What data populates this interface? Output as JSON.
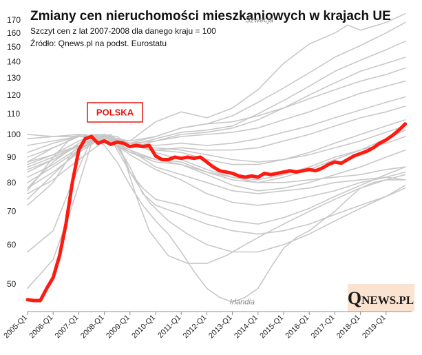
{
  "chart_data": {
    "type": "line",
    "title": "Zmiany cen nieruchomości mieszkaniowych w krajach UE",
    "subtitle": "Szczyt cen z lat 2007-2008  dla danego kraju = 100",
    "source": "Źródło: Qnews.pl na podst. Eurostatu",
    "xlabel": "",
    "ylabel": "",
    "y_scale": "log",
    "ylim": [
      44,
      176
    ],
    "y_ticks": [
      50,
      60,
      70,
      80,
      90,
      100,
      110,
      120,
      130,
      140,
      150,
      160,
      170
    ],
    "x_ticks": [
      "2005-Q1",
      "2006-Q1",
      "2007-Q1",
      "2008-Q1",
      "2009-Q1",
      "2010-Q1",
      "2011-Q1",
      "2012-Q1",
      "2013-Q1",
      "2014-Q1",
      "2015-Q1",
      "2016-Q1",
      "2017-Q1",
      "2018-Q1",
      "2019-Q1"
    ],
    "x_range": [
      2005.0,
      2020.0
    ],
    "grid": false,
    "colors": {
      "highlight": "#ff1a10",
      "other": "#c8c8c8",
      "label_text": "#8a8a8a"
    },
    "highlight_label": "POLSKA",
    "annotations": [
      {
        "text": "Szwecja",
        "x": 2013.5,
        "y": 168
      },
      {
        "text": "Irlandia",
        "x": 2012.9,
        "y": 45.5
      }
    ],
    "series": [
      {
        "name": "Polska",
        "highlight": true,
        "x": [
          2005.0,
          2005.25,
          2005.5,
          2005.75,
          2006.0,
          2006.25,
          2006.5,
          2006.75,
          2007.0,
          2007.25,
          2007.5,
          2007.75,
          2008.0,
          2008.25,
          2008.5,
          2008.75,
          2009.0,
          2009.25,
          2009.5,
          2009.75,
          2010.0,
          2010.25,
          2010.5,
          2010.75,
          2011.0,
          2011.25,
          2011.5,
          2011.75,
          2012.0,
          2012.25,
          2012.5,
          2012.75,
          2013.0,
          2013.25,
          2013.5,
          2013.75,
          2014.0,
          2014.25,
          2014.5,
          2014.75,
          2015.0,
          2015.25,
          2015.5,
          2015.75,
          2016.0,
          2016.25,
          2016.5,
          2016.75,
          2017.0,
          2017.25,
          2017.5,
          2017.75,
          2018.0,
          2018.25,
          2018.5,
          2018.75,
          2019.0,
          2019.25,
          2019.5,
          2019.75
        ],
        "y": [
          46.5,
          46.3,
          46.3,
          49.0,
          51.5,
          57.0,
          66.0,
          80.0,
          93.0,
          98.0,
          99.0,
          96.0,
          97.0,
          95.5,
          96.5,
          96.0,
          94.5,
          95.0,
          94.5,
          95.0,
          90.5,
          89.0,
          89.0,
          90.0,
          89.5,
          90.0,
          89.5,
          90.0,
          88.0,
          86.0,
          84.5,
          84.0,
          83.5,
          82.5,
          82.0,
          82.5,
          82.0,
          83.5,
          83.0,
          83.5,
          84.0,
          84.5,
          84.0,
          84.5,
          85.0,
          84.5,
          85.5,
          87.0,
          88.0,
          87.5,
          89.0,
          90.5,
          91.5,
          92.5,
          94.0,
          96.0,
          97.5,
          99.5,
          102.0,
          105.0
        ]
      },
      {
        "name": "Szwecja",
        "x": [
          2005.0,
          2006.0,
          2007.0,
          2007.75,
          2008.5,
          2009.0,
          2010.0,
          2011.0,
          2012.0,
          2013.0,
          2014.0,
          2015.0,
          2016.0,
          2017.0,
          2017.5,
          2018.0,
          2019.0,
          2019.75
        ],
        "y": [
          78,
          88,
          96,
          100,
          98,
          97,
          106,
          111,
          108,
          113,
          123,
          139,
          152,
          160,
          166,
          162,
          168,
          175
        ]
      },
      {
        "name": "Irlandia",
        "x": [
          2005.0,
          2006.0,
          2006.75,
          2007.25,
          2008.0,
          2008.5,
          2009.0,
          2009.5,
          2010.0,
          2010.5,
          2011.0,
          2011.5,
          2012.0,
          2012.5,
          2013.0,
          2013.5,
          2014.0,
          2014.5,
          2015.0,
          2015.5,
          2016.0,
          2016.5,
          2017.0,
          2017.5,
          2018.0,
          2018.5,
          2019.0,
          2019.75
        ],
        "y": [
          77,
          90,
          99,
          100,
          95,
          88,
          79,
          72,
          67,
          63,
          58,
          53,
          49,
          47,
          46,
          47,
          49,
          54,
          59,
          62,
          64,
          67,
          70,
          74,
          78,
          80,
          81,
          81
        ]
      },
      {
        "name": "",
        "x": [
          2005.0,
          2006.0,
          2007.0,
          2007.75,
          2008.25,
          2009.0,
          2010.0,
          2011.0,
          2012.0,
          2013.0,
          2014.0,
          2015.0,
          2016.0,
          2017.0,
          2018.0,
          2019.0,
          2019.75
        ],
        "y": [
          90,
          94,
          99,
          100,
          99,
          96,
          99,
          103,
          105,
          109,
          116,
          124,
          133,
          143,
          151,
          160,
          168
        ]
      },
      {
        "name": "",
        "x": [
          2005.0,
          2006.0,
          2007.0,
          2007.75,
          2008.5,
          2009.0,
          2010.0,
          2011.0,
          2012.0,
          2013.0,
          2014.0,
          2015.0,
          2016.0,
          2017.0,
          2018.0,
          2019.0,
          2019.75
        ],
        "y": [
          87,
          91,
          97,
          100,
          99,
          95,
          98,
          101,
          102,
          104,
          110,
          117,
          125,
          134,
          141,
          148,
          154
        ]
      },
      {
        "name": "",
        "x": [
          2005.0,
          2006.0,
          2007.0,
          2007.75,
          2008.5,
          2009.0,
          2010.0,
          2011.0,
          2012.0,
          2013.0,
          2014.0,
          2015.0,
          2016.0,
          2017.0,
          2018.0,
          2019.0,
          2019.75
        ],
        "y": [
          86,
          90,
          95,
          99,
          98,
          94,
          97,
          100,
          101,
          103,
          107,
          113,
          120,
          127,
          134,
          139,
          143
        ]
      },
      {
        "name": "",
        "x": [
          2005.0,
          2006.0,
          2007.0,
          2008.0,
          2009.0,
          2010.0,
          2011.0,
          2012.0,
          2013.0,
          2014.0,
          2015.0,
          2016.0,
          2017.0,
          2018.0,
          2019.0,
          2019.75
        ],
        "y": [
          88,
          91,
          95,
          99,
          97,
          99,
          103,
          105,
          106,
          109,
          113,
          118,
          123,
          128,
          132,
          136
        ]
      },
      {
        "name": "",
        "x": [
          2005.0,
          2006.0,
          2007.0,
          2008.0,
          2009.0,
          2010.0,
          2011.0,
          2012.0,
          2013.0,
          2014.0,
          2015.0,
          2016.0,
          2017.0,
          2018.0,
          2019.0,
          2019.75
        ],
        "y": [
          82,
          87,
          94,
          99,
          96,
          97,
          99,
          100,
          101,
          103,
          107,
          111,
          116,
          121,
          125,
          128
        ]
      },
      {
        "name": "",
        "x": [
          2005.0,
          2006.0,
          2007.0,
          2008.0,
          2009.0,
          2010.0,
          2011.0,
          2012.0,
          2013.0,
          2014.0,
          2015.0,
          2016.0,
          2017.0,
          2018.0,
          2019.0,
          2019.75
        ],
        "y": [
          84,
          89,
          95,
          99,
          96,
          95,
          96,
          95,
          96,
          98,
          101,
          104,
          108,
          112,
          116,
          119
        ]
      },
      {
        "name": "",
        "x": [
          2005.0,
          2006.0,
          2007.0,
          2008.0,
          2009.0,
          2010.0,
          2011.0,
          2012.0,
          2013.0,
          2014.0,
          2015.0,
          2016.0,
          2017.0,
          2018.0,
          2019.0,
          2019.75
        ],
        "y": [
          80,
          86,
          93,
          99,
          95,
          93,
          94,
          93,
          93,
          94,
          97,
          100,
          104,
          108,
          111,
          114
        ]
      },
      {
        "name": "",
        "x": [
          2005.0,
          2006.0,
          2007.0,
          2008.0,
          2009.0,
          2010.0,
          2011.0,
          2012.0,
          2013.0,
          2014.0,
          2015.0,
          2016.0,
          2017.0,
          2018.0,
          2019.0,
          2019.75
        ],
        "y": [
          85,
          89,
          95,
          100,
          95,
          93,
          92,
          89,
          87,
          87,
          89,
          92,
          96,
          100,
          104,
          107
        ]
      },
      {
        "name": "",
        "x": [
          2005.0,
          2006.0,
          2007.0,
          2008.0,
          2009.0,
          2010.0,
          2011.0,
          2012.0,
          2013.0,
          2014.0,
          2015.0,
          2016.0,
          2017.0,
          2018.0,
          2019.0,
          2019.75
        ],
        "y": [
          100,
          99,
          99,
          99,
          95,
          94,
          93,
          91,
          89,
          88,
          89,
          91,
          94,
          97,
          101,
          104
        ]
      },
      {
        "name": "",
        "x": [
          2005.0,
          2006.0,
          2007.0,
          2008.0,
          2009.0,
          2010.0,
          2011.0,
          2012.0,
          2013.0,
          2014.0,
          2015.0,
          2016.0,
          2017.0,
          2018.0,
          2019.0,
          2019.75
        ],
        "y": [
          98,
          99,
          100,
          99,
          93,
          89,
          88,
          84,
          81,
          80,
          82,
          85,
          89,
          93,
          98,
          102
        ]
      },
      {
        "name": "",
        "x": [
          2005.0,
          2006.0,
          2007.0,
          2008.0,
          2009.0,
          2010.0,
          2011.0,
          2012.0,
          2013.0,
          2014.0,
          2015.0,
          2016.0,
          2017.0,
          2018.0,
          2019.0,
          2019.75
        ],
        "y": [
          78,
          84,
          92,
          99,
          92,
          88,
          87,
          84,
          82,
          81,
          83,
          86,
          90,
          93,
          96,
          99
        ]
      },
      {
        "name": "",
        "x": [
          2005.0,
          2006.0,
          2007.0,
          2008.0,
          2009.0,
          2010.0,
          2011.0,
          2012.0,
          2013.0,
          2014.0,
          2015.0,
          2016.0,
          2017.0,
          2018.0,
          2019.0,
          2019.75
        ],
        "y": [
          92,
          96,
          99,
          98,
          92,
          89,
          87,
          83,
          79,
          77,
          78,
          80,
          83,
          86,
          90,
          93
        ]
      },
      {
        "name": "",
        "x": [
          2005.0,
          2006.0,
          2007.0,
          2008.0,
          2009.0,
          2010.0,
          2011.0,
          2012.0,
          2013.0,
          2014.0,
          2015.0,
          2016.0,
          2017.0,
          2018.0,
          2019.0,
          2019.75
        ],
        "y": [
          95,
          97,
          99,
          100,
          96,
          92,
          89,
          85,
          82,
          80,
          80,
          81,
          82,
          83,
          85,
          86
        ]
      },
      {
        "name": "",
        "x": [
          2005.0,
          2006.0,
          2007.0,
          2008.0,
          2009.0,
          2010.0,
          2011.0,
          2012.0,
          2013.0,
          2014.0,
          2015.0,
          2016.0,
          2017.0,
          2018.0,
          2019.0,
          2019.75
        ],
        "y": [
          88,
          94,
          99,
          99,
          91,
          85,
          81,
          76,
          73,
          72,
          73,
          75,
          77,
          80,
          82,
          84
        ]
      },
      {
        "name": "",
        "x": [
          2005.0,
          2006.0,
          2006.75,
          2007.5,
          2008.25,
          2009.0,
          2009.5,
          2010.0,
          2011.0,
          2012.0,
          2013.0,
          2014.0,
          2015.0,
          2016.0,
          2017.0,
          2018.0,
          2019.0,
          2019.75
        ],
        "y": [
          72,
          80,
          92,
          100,
          98,
          84,
          78,
          74,
          72,
          69,
          67,
          66,
          68,
          71,
          75,
          79,
          83,
          86
        ]
      },
      {
        "name": "",
        "x": [
          2005.0,
          2006.0,
          2006.75,
          2007.5,
          2008.25,
          2009.0,
          2009.5,
          2010.0,
          2011.0,
          2012.0,
          2013.0,
          2014.0,
          2015.0,
          2016.0,
          2017.0,
          2018.0,
          2019.0,
          2019.75
        ],
        "y": [
          58,
          64,
          80,
          98,
          100,
          86,
          76,
          72,
          69,
          66,
          64,
          63,
          64,
          66,
          69,
          72,
          75,
          78
        ]
      },
      {
        "name": "",
        "x": [
          2005.0,
          2006.0,
          2006.75,
          2007.5,
          2008.25,
          2008.75,
          2009.25,
          2009.75,
          2010.5,
          2011.25,
          2012.0,
          2012.75,
          2013.5,
          2014.25,
          2015.0,
          2016.0,
          2017.0,
          2018.0,
          2019.0,
          2019.75
        ],
        "y": [
          49,
          56,
          72,
          96,
          99,
          90,
          75,
          64,
          57,
          55,
          55,
          57,
          60,
          63,
          66,
          70,
          74,
          78,
          81,
          83
        ]
      },
      {
        "name": "",
        "x": [
          2005.0,
          2006.0,
          2007.0,
          2007.75,
          2008.5,
          2009.0,
          2009.75,
          2010.5,
          2011.25,
          2012.0,
          2013.0,
          2014.0,
          2015.0,
          2016.0,
          2017.0,
          2018.0,
          2019.0,
          2019.75
        ],
        "y": [
          74,
          83,
          93,
          99,
          97,
          84,
          73,
          67,
          63,
          60,
          58,
          58,
          60,
          63,
          67,
          71,
          75,
          79
        ]
      },
      {
        "name": "",
        "x": [
          2005.0,
          2006.0,
          2007.0,
          2008.0,
          2009.0,
          2010.0,
          2011.0,
          2012.0,
          2013.0,
          2014.0,
          2015.0,
          2016.0,
          2017.0,
          2018.0,
          2019.0,
          2019.75
        ],
        "y": [
          76,
          81,
          89,
          97,
          93,
          86,
          83,
          80,
          77,
          76,
          77,
          78,
          80,
          81,
          82,
          81
        ]
      }
    ]
  },
  "logo": {
    "q": "Q",
    "rest": "NEWS.PL"
  }
}
